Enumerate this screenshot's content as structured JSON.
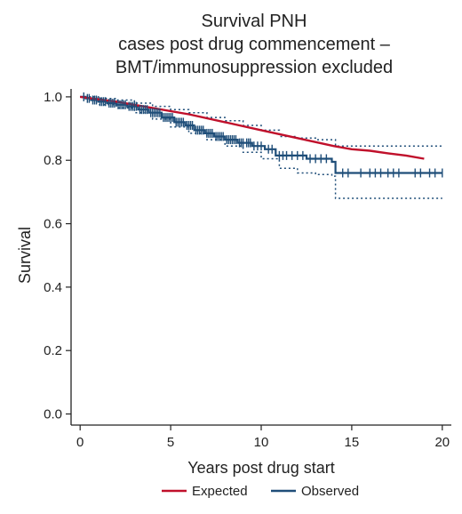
{
  "chart_data": {
    "type": "line",
    "title": [
      "Survival PNH",
      "cases post drug commencement –",
      "BMT/immunosuppression excluded"
    ],
    "xlabel": "Years post drug start",
    "ylabel": "Survival",
    "xlim": [
      0,
      20
    ],
    "ylim": [
      0,
      1.0
    ],
    "x_ticks": [
      0,
      5,
      10,
      15,
      20
    ],
    "y_ticks": [
      0.0,
      0.2,
      0.4,
      0.6,
      0.8,
      1.0
    ],
    "x_tick_labels": [
      "0",
      "5",
      "10",
      "15",
      "20"
    ],
    "y_tick_labels": [
      "0.0",
      "0.2",
      "0.4",
      "0.6",
      "0.8",
      "1.0"
    ],
    "grid": false,
    "legend_position": "bottom",
    "series": [
      {
        "name": "Expected",
        "color": "#c0102b",
        "style": "solid",
        "x": [
          0,
          2,
          4,
          6,
          8,
          10,
          12,
          14,
          15,
          16,
          17,
          18,
          19
        ],
        "y": [
          1.0,
          0.985,
          0.965,
          0.945,
          0.92,
          0.895,
          0.87,
          0.845,
          0.835,
          0.83,
          0.822,
          0.815,
          0.805
        ]
      },
      {
        "name": "Observed",
        "color": "#1f4e79",
        "style": "step",
        "x": [
          0,
          0.3,
          0.6,
          1.0,
          1.5,
          2.0,
          2.6,
          3.2,
          3.8,
          4.5,
          5.2,
          5.8,
          6.3,
          6.9,
          7.4,
          8.0,
          8.7,
          9.5,
          10.2,
          10.8,
          12.5,
          13.9,
          14.1,
          20.0
        ],
        "y": [
          1.0,
          0.995,
          0.99,
          0.985,
          0.98,
          0.975,
          0.97,
          0.96,
          0.95,
          0.935,
          0.92,
          0.91,
          0.895,
          0.885,
          0.875,
          0.865,
          0.855,
          0.845,
          0.835,
          0.815,
          0.805,
          0.795,
          0.76,
          0.76
        ]
      }
    ],
    "confidence_band": {
      "color": "#1f4e79",
      "style": "dotted",
      "x": [
        0,
        1,
        2,
        3,
        4,
        5,
        6,
        7,
        8,
        9,
        10,
        11,
        12,
        13,
        13.9,
        14.1,
        20.0
      ],
      "upper": [
        1.0,
        0.995,
        0.99,
        0.98,
        0.97,
        0.96,
        0.95,
        0.935,
        0.925,
        0.91,
        0.895,
        0.875,
        0.87,
        0.865,
        0.865,
        0.845,
        0.845
      ],
      "lower": [
        1.0,
        0.975,
        0.965,
        0.95,
        0.93,
        0.905,
        0.885,
        0.865,
        0.845,
        0.825,
        0.805,
        0.775,
        0.76,
        0.755,
        0.75,
        0.68,
        0.68
      ]
    },
    "censor_times": [
      0.2,
      0.4,
      0.5,
      0.7,
      0.8,
      0.9,
      1.1,
      1.2,
      1.3,
      1.4,
      1.6,
      1.7,
      1.8,
      1.9,
      2.1,
      2.2,
      2.3,
      2.4,
      2.5,
      2.7,
      2.8,
      2.9,
      3.0,
      3.1,
      3.3,
      3.4,
      3.5,
      3.6,
      3.7,
      3.9,
      4.0,
      4.1,
      4.2,
      4.3,
      4.4,
      4.6,
      4.7,
      4.8,
      4.9,
      5.0,
      5.1,
      5.3,
      5.4,
      5.5,
      5.6,
      5.7,
      5.9,
      6.0,
      6.1,
      6.2,
      6.4,
      6.5,
      6.6,
      6.7,
      6.8,
      7.0,
      7.1,
      7.2,
      7.3,
      7.5,
      7.6,
      7.7,
      7.8,
      7.9,
      8.1,
      8.2,
      8.3,
      8.4,
      8.5,
      8.6,
      8.8,
      8.9,
      9.0,
      9.2,
      9.3,
      9.4,
      9.6,
      9.8,
      10.0,
      10.4,
      10.6,
      11.0,
      11.2,
      11.4,
      11.7,
      12.0,
      12.3,
      12.7,
      13.0,
      13.3,
      13.6,
      14.5,
      14.8,
      15.5,
      16.0,
      16.3,
      16.6,
      17.0,
      17.3,
      17.6,
      18.5,
      18.8,
      19.3,
      19.6,
      20.0
    ]
  }
}
